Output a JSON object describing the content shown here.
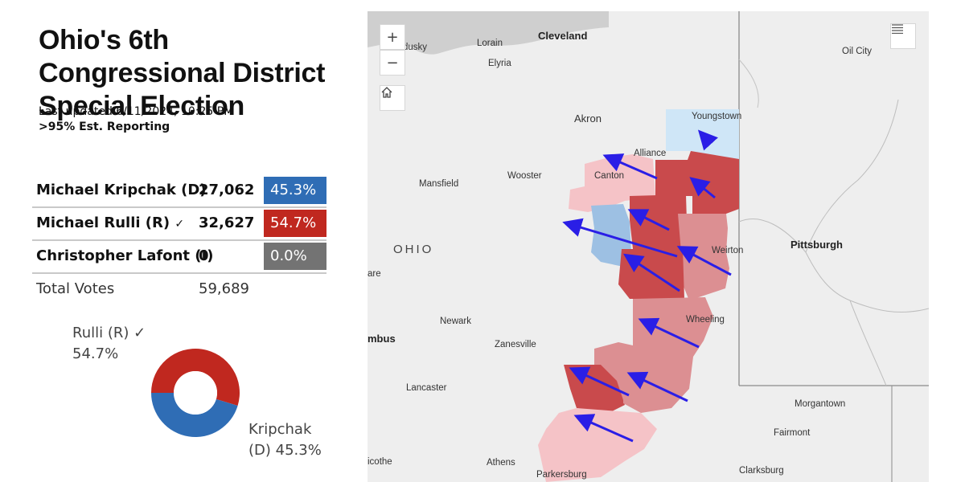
{
  "title": "Ohio's 6th Congressional District Special Election",
  "last_updated": "Last updated 6/11/2024, 10:25 PM",
  "reporting": ">95% Est. Reporting",
  "candidates": [
    {
      "name": "Michael Kripchak (D)",
      "check": "",
      "votes": "27,062",
      "pct": "45.3%",
      "color": "#2f6db5"
    },
    {
      "name": "Michael Rulli (R)",
      "check": "✓",
      "votes": "32,627",
      "pct": "54.7%",
      "color": "#c0281f"
    },
    {
      "name": "Christopher Lafont (I)",
      "check": "",
      "votes": "0",
      "pct": "0.0%",
      "color": "#737373"
    }
  ],
  "total": {
    "label": "Total Votes",
    "votes": "59,689"
  },
  "donut": {
    "rulli_line1": "Rulli (R) ✓",
    "rulli_line2": "54.7%",
    "kripchak_line1": "Kripchak",
    "kripchak_line2": "(D) 45.3%",
    "rulli_share": 54.7,
    "kripchak_share": 45.3,
    "rulli_color": "#c0281f",
    "kripchak_color": "#2f6db5"
  },
  "map": {
    "zoom_in": "+",
    "zoom_out": "−",
    "home_icon": "home-icon",
    "layers_icon": "list-icon",
    "state_label": "OHIO",
    "places": {
      "cleveland": "Cleveland",
      "sandusky": "dusky",
      "lorain": "Lorain",
      "elyria": "Elyria",
      "akron": "Akron",
      "youngstown": "Youngstown",
      "alliance": "Alliance",
      "canton": "Canton",
      "wooster": "Wooster",
      "mansfield": "Mansfield",
      "oil_city": "Oil City",
      "pittsburgh": "Pittsburgh",
      "weirton": "Weirton",
      "wheeling": "Wheeling",
      "newark": "Newark",
      "zanesville": "Zanesville",
      "columbus": "mbus",
      "marion": "are",
      "lancaster": "Lancaster",
      "morgantown": "Morgantown",
      "fairmont": "Fairmont",
      "clarksburg": "Clarksburg",
      "athens": "Athens",
      "parkersburg": "Parkersburg",
      "chillicothe": "icothe"
    }
  }
}
